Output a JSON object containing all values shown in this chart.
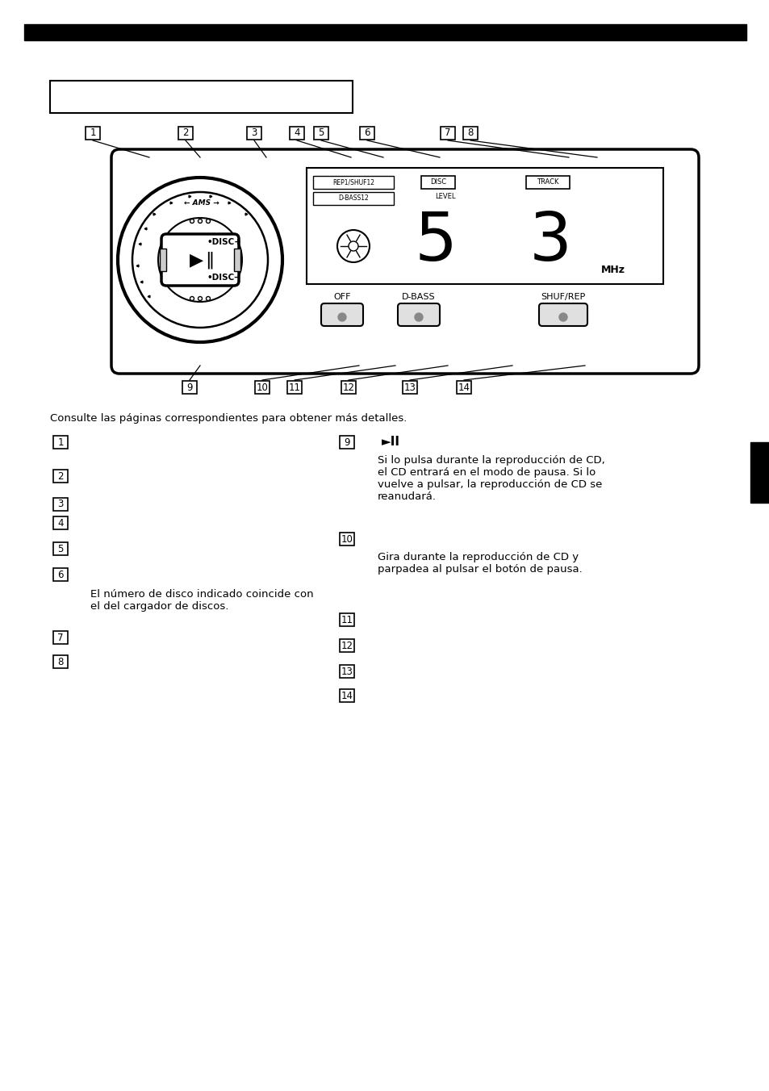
{
  "consult_text": "Consulte las páginas correspondientes para obtener más detalles.",
  "left_items": [
    {
      "num": "1",
      "text": ""
    },
    {
      "num": "2",
      "text": ""
    },
    {
      "num": "3",
      "text": ""
    },
    {
      "num": "4",
      "text": ""
    },
    {
      "num": "5",
      "text": ""
    },
    {
      "num": "6",
      "text": "El número de disco indicado coincide con\nel del cargador de discos."
    },
    {
      "num": "7",
      "text": ""
    },
    {
      "num": "8",
      "text": ""
    }
  ],
  "right_items": [
    {
      "num": "9",
      "symbol": "►■■",
      "text": "Si lo pulsa durante la reproducción de CD,\nel CD entrará en el modo de pausa. Si lo\nvuelve a pulsar, la reproducción de CD se\nreanudará."
    },
    {
      "num": "10",
      "symbol": "",
      "text": "Gira durante la reproducción de CD y\nparpadea al pulsar el botón de pausa."
    },
    {
      "num": "11",
      "symbol": "",
      "text": ""
    },
    {
      "num": "12",
      "symbol": "",
      "text": ""
    },
    {
      "num": "13",
      "symbol": "",
      "text": ""
    },
    {
      "num": "14",
      "symbol": "",
      "text": ""
    }
  ],
  "bg_color": "#ffffff",
  "text_color": "#000000"
}
